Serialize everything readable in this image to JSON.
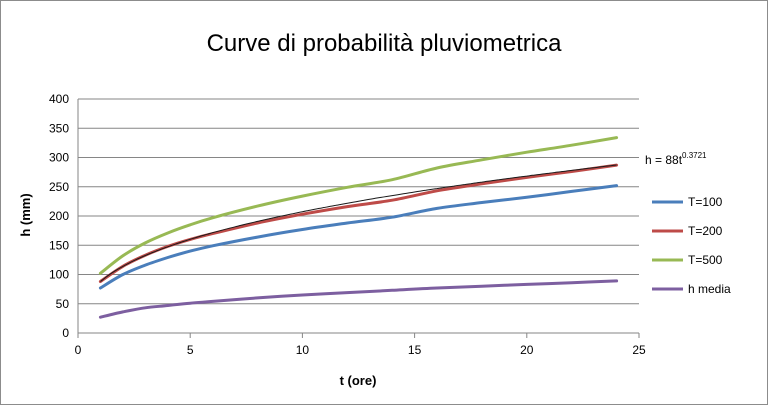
{
  "chart_data": {
    "type": "line",
    "title": "Curve di probabilità pluviometrica",
    "xlabel": "t (ore)",
    "ylabel": "h (mm)",
    "xlim": [
      0,
      25
    ],
    "ylim": [
      0,
      400
    ],
    "x_ticks": [
      0,
      5,
      10,
      15,
      20,
      25
    ],
    "y_ticks": [
      0,
      50,
      100,
      150,
      200,
      250,
      300,
      350,
      400
    ],
    "grid": "horizontal",
    "legend_position": "right",
    "annotation": {
      "text": "h = 88t",
      "superscript": "0.3721"
    },
    "x": [
      1,
      2,
      3,
      4,
      5,
      6,
      8,
      10,
      12,
      14,
      16,
      18,
      20,
      22,
      24
    ],
    "series": [
      {
        "name": "T=100",
        "color": "#4a7ebb",
        "values": [
          77,
          100,
          116,
          129,
          140,
          149,
          164,
          177,
          188,
          198,
          213,
          223,
          232,
          242,
          252
        ]
      },
      {
        "name": "T=200",
        "color": "#be4b48",
        "values": [
          88,
          114,
          133,
          148,
          160,
          170,
          188,
          203,
          216,
          227,
          243,
          255,
          266,
          276,
          287
        ]
      },
      {
        "name": "T=500",
        "color": "#98b954",
        "values": [
          102,
          132,
          154,
          171,
          185,
          197,
          217,
          234,
          249,
          262,
          282,
          296,
          309,
          321,
          334
        ]
      },
      {
        "name": "h media",
        "color": "#7d5fa0",
        "values": [
          27,
          36,
          43,
          47,
          51,
          54,
          60,
          65,
          69,
          73,
          77,
          80,
          83,
          86,
          89
        ]
      }
    ],
    "fit_line": {
      "x": [
        1,
        3,
        6,
        10,
        14,
        18,
        22,
        24
      ],
      "color": "#1a1a1a"
    }
  }
}
